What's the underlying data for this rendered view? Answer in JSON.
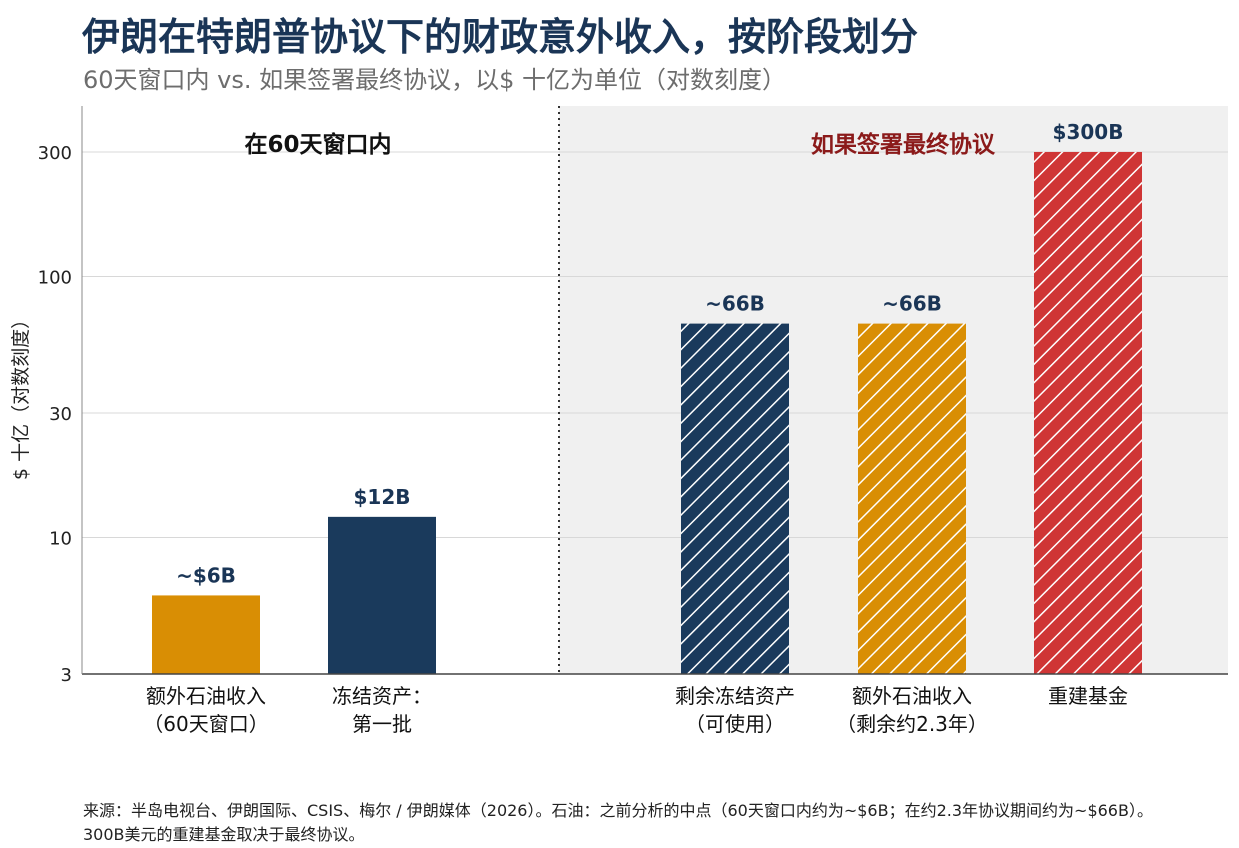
{
  "title": "伊朗在特朗普协议下的财政意外收入，按阶段划分",
  "subtitle": "60天窗口内 vs. 如果签署最终协议，以$ 十亿为单位（对数刻度）",
  "source": "来源：半岛电视台、伊朗国际、CSIS、梅尔 / 伊朗媒体（2026）。石油：之前分析的中点（60天窗口内约为~$6B；在约2.3年协议期间约为~$66B）。 300B美元的重建基金取决于最终协议。",
  "colors": {
    "orange": "#d98e04",
    "navy": "#1a3a5c",
    "red": "#cf3535",
    "title": "#1a3556",
    "section2_label": "#8b1a1a",
    "section2_bg": "#f0f0f0"
  },
  "chart_data": {
    "type": "bar",
    "ylabel": "$ 十亿（对数刻度）",
    "yscale": "log",
    "ylim": [
      3,
      450
    ],
    "yticks": [
      3,
      10,
      30,
      100,
      300
    ],
    "grid": true,
    "sections": [
      {
        "label": "在60天窗口内",
        "shaded": false
      },
      {
        "label": "如果签署最终协议",
        "shaded": true
      }
    ],
    "bars": [
      {
        "category": [
          "额外石油收入",
          "（60天窗口）"
        ],
        "value": 6,
        "label": "~$6B",
        "color": "orange",
        "hatched": false,
        "section": 0
      },
      {
        "category": [
          "冻结资产：",
          "第一批"
        ],
        "value": 12,
        "label": "$12B",
        "color": "navy",
        "hatched": false,
        "section": 0
      },
      {
        "category": [
          "剩余冻结资产",
          "（可使用）"
        ],
        "value": 66,
        "label": "~66B",
        "color": "navy",
        "hatched": true,
        "section": 1
      },
      {
        "category": [
          "额外石油收入",
          "（剩余约2.3年）"
        ],
        "value": 66,
        "label": "~66B",
        "color": "orange",
        "hatched": true,
        "section": 1
      },
      {
        "category": [
          "重建基金"
        ],
        "value": 300,
        "label": "$300B",
        "color": "red",
        "hatched": true,
        "section": 1
      }
    ]
  }
}
